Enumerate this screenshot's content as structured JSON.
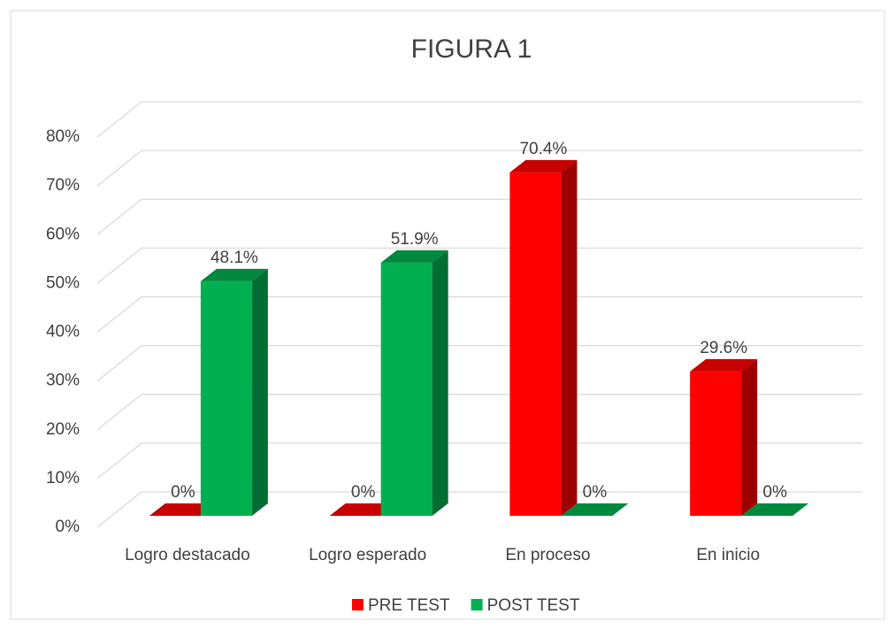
{
  "chart_data": {
    "type": "bar3d",
    "title": "FIGURA 1",
    "categories": [
      "Logro destacado",
      "Logro esperado",
      "En proceso",
      "En inicio"
    ],
    "series": [
      {
        "name": "PRE TEST",
        "color": "#ff0000",
        "values": [
          0,
          0,
          70.4,
          29.6
        ],
        "value_labels": [
          "0%",
          "0%",
          "70.4%",
          "29.6%"
        ]
      },
      {
        "name": "POST TEST",
        "color": "#00b050",
        "values": [
          48.1,
          51.9,
          0,
          0
        ],
        "value_labels": [
          "48.1%",
          "51.9%",
          "0%",
          "0%"
        ]
      }
    ],
    "ylim": [
      0,
      80
    ],
    "yticks": [
      {
        "value": 0,
        "label": "0%"
      },
      {
        "value": 10,
        "label": "10%"
      },
      {
        "value": 20,
        "label": "20%"
      },
      {
        "value": 30,
        "label": "30%"
      },
      {
        "value": 40,
        "label": "40%"
      },
      {
        "value": 50,
        "label": "50%"
      },
      {
        "value": 60,
        "label": "60%"
      },
      {
        "value": 70,
        "label": "70%"
      },
      {
        "value": 80,
        "label": "80%"
      }
    ],
    "grid": true,
    "legend": "bottom"
  }
}
